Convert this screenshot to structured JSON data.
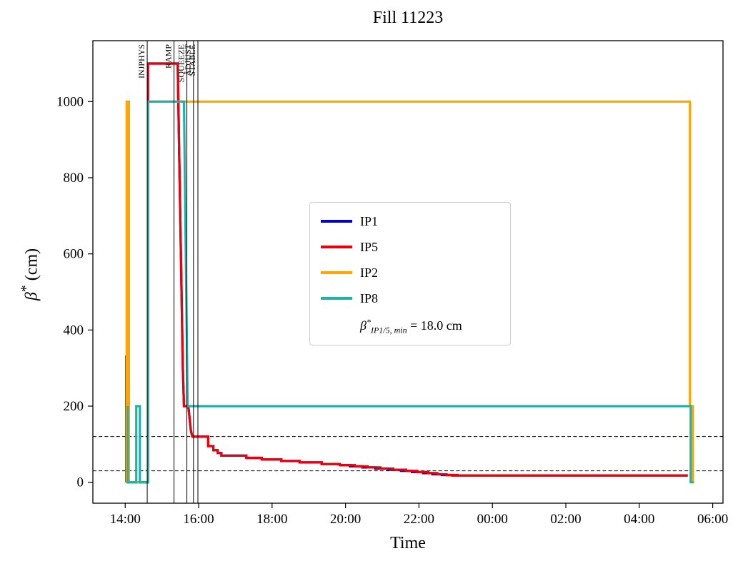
{
  "chart_data": {
    "type": "line",
    "title": "Fill 11223",
    "xlabel": "Time",
    "ylabel": "β* (cm)",
    "ylabel_parts": {
      "base": "β",
      "sup": "*",
      "unit": " (cm)"
    },
    "x_encoding": "hours; 24+ means next day",
    "xlim": [
      13.12,
      30.28
    ],
    "ylim": [
      -55,
      1160
    ],
    "grid": false,
    "legend_position": "center",
    "xticks": [
      {
        "v": 14,
        "label": "14:00"
      },
      {
        "v": 16,
        "label": "16:00"
      },
      {
        "v": 18,
        "label": "18:00"
      },
      {
        "v": 20,
        "label": "20:00"
      },
      {
        "v": 22,
        "label": "22:00"
      },
      {
        "v": 24,
        "label": "00:00"
      },
      {
        "v": 26,
        "label": "02:00"
      },
      {
        "v": 28,
        "label": "04:00"
      },
      {
        "v": 30,
        "label": "06:00"
      }
    ],
    "yticks": [
      {
        "v": 0,
        "label": "0"
      },
      {
        "v": 200,
        "label": "200"
      },
      {
        "v": 400,
        "label": "400"
      },
      {
        "v": 600,
        "label": "600"
      },
      {
        "v": 800,
        "label": "800"
      },
      {
        "v": 1000,
        "label": "1000"
      }
    ],
    "hlines": [
      {
        "y": 120,
        "style": "dashed",
        "color": "#000000"
      },
      {
        "y": 30,
        "style": "dashed",
        "color": "#000000"
      }
    ],
    "events": [
      {
        "t": 14.6,
        "label": "INJPHYS"
      },
      {
        "t": 15.33,
        "label": "RAMP"
      },
      {
        "t": 15.68,
        "label": "SQUEEZE"
      },
      {
        "t": 15.86,
        "label": "ADJUST"
      },
      {
        "t": 15.98,
        "label": "STABLE"
      }
    ],
    "series": [
      {
        "name": "IP1",
        "color": "#0000cd",
        "points": [
          [
            14.03,
            0
          ],
          [
            14.03,
            330
          ],
          [
            14.07,
            330
          ],
          [
            14.07,
            0
          ],
          [
            14.62,
            0
          ],
          [
            14.62,
            1100
          ],
          [
            15.43,
            1100
          ],
          [
            15.57,
            300
          ],
          [
            15.6,
            200
          ],
          [
            15.72,
            200
          ],
          [
            15.79,
            135
          ],
          [
            15.83,
            120
          ],
          [
            16.26,
            120
          ],
          [
            16.26,
            95
          ],
          [
            16.4,
            95
          ],
          [
            16.4,
            84
          ],
          [
            16.52,
            84
          ],
          [
            16.52,
            77
          ],
          [
            16.62,
            77
          ],
          [
            16.62,
            70
          ],
          [
            17.3,
            70
          ],
          [
            17.3,
            64
          ],
          [
            17.72,
            64
          ],
          [
            17.72,
            60
          ],
          [
            18.25,
            60
          ],
          [
            18.25,
            56
          ],
          [
            18.75,
            56
          ],
          [
            18.75,
            52
          ],
          [
            19.35,
            52
          ],
          [
            19.35,
            48
          ],
          [
            19.85,
            48
          ],
          [
            19.85,
            45
          ],
          [
            20.12,
            45
          ],
          [
            20.12,
            42
          ],
          [
            20.46,
            42
          ],
          [
            20.46,
            39
          ],
          [
            20.81,
            39
          ],
          [
            20.81,
            36
          ],
          [
            21.16,
            36
          ],
          [
            21.16,
            33
          ],
          [
            21.51,
            33
          ],
          [
            21.51,
            30
          ],
          [
            21.81,
            30
          ],
          [
            21.81,
            27
          ],
          [
            22.11,
            27
          ],
          [
            22.11,
            24
          ],
          [
            22.37,
            24
          ],
          [
            22.37,
            21
          ],
          [
            22.62,
            21
          ],
          [
            22.62,
            19
          ],
          [
            22.91,
            19
          ],
          [
            22.91,
            18
          ],
          [
            29.32,
            18
          ]
        ]
      },
      {
        "name": "IP5",
        "color": "#e8000b",
        "points": [
          [
            14.03,
            0
          ],
          [
            14.03,
            330
          ],
          [
            14.07,
            330
          ],
          [
            14.07,
            0
          ],
          [
            14.62,
            0
          ],
          [
            14.62,
            1100
          ],
          [
            15.43,
            1100
          ],
          [
            15.57,
            300
          ],
          [
            15.6,
            200
          ],
          [
            15.72,
            200
          ],
          [
            15.79,
            135
          ],
          [
            15.83,
            120
          ],
          [
            16.26,
            120
          ],
          [
            16.26,
            95
          ],
          [
            16.4,
            95
          ],
          [
            16.4,
            84
          ],
          [
            16.52,
            84
          ],
          [
            16.52,
            77
          ],
          [
            16.62,
            77
          ],
          [
            16.62,
            70
          ],
          [
            17.3,
            70
          ],
          [
            17.3,
            64
          ],
          [
            17.72,
            64
          ],
          [
            17.72,
            60
          ],
          [
            18.25,
            60
          ],
          [
            18.25,
            56
          ],
          [
            18.75,
            56
          ],
          [
            18.75,
            52
          ],
          [
            19.35,
            52
          ],
          [
            19.35,
            48
          ],
          [
            19.85,
            48
          ],
          [
            19.85,
            45
          ],
          [
            20.25,
            45
          ],
          [
            20.25,
            42
          ],
          [
            20.6,
            42
          ],
          [
            20.6,
            39
          ],
          [
            20.95,
            39
          ],
          [
            20.95,
            36
          ],
          [
            21.3,
            36
          ],
          [
            21.3,
            33
          ],
          [
            21.65,
            33
          ],
          [
            21.65,
            30
          ],
          [
            21.95,
            30
          ],
          [
            21.95,
            27
          ],
          [
            22.25,
            27
          ],
          [
            22.25,
            24
          ],
          [
            22.5,
            24
          ],
          [
            22.5,
            21
          ],
          [
            22.75,
            21
          ],
          [
            22.75,
            19
          ],
          [
            23.05,
            19
          ],
          [
            23.05,
            18
          ],
          [
            29.32,
            18
          ]
        ]
      },
      {
        "name": "IP2",
        "color": "#ffa500",
        "points": [
          [
            14.04,
            0
          ],
          [
            14.04,
            1000
          ],
          [
            14.1,
            1000
          ],
          [
            14.1,
            0
          ],
          [
            14.62,
            0
          ],
          [
            14.62,
            1000
          ],
          [
            29.38,
            1000
          ],
          [
            29.38,
            200
          ],
          [
            29.46,
            200
          ],
          [
            29.46,
            0
          ],
          [
            29.5,
            0
          ]
        ]
      },
      {
        "name": "IP8",
        "color": "#20b2aa",
        "points": [
          [
            14.07,
            200
          ],
          [
            14.07,
            0
          ],
          [
            14.3,
            0
          ],
          [
            14.3,
            200
          ],
          [
            14.4,
            200
          ],
          [
            14.4,
            0
          ],
          [
            14.62,
            0
          ],
          [
            14.62,
            1000
          ],
          [
            15.6,
            1000
          ],
          [
            15.7,
            200
          ],
          [
            29.4,
            200
          ],
          [
            29.4,
            0
          ],
          [
            29.47,
            0
          ]
        ]
      }
    ],
    "annotation": {
      "base": "β",
      "sup": "*",
      "sub": "IP1/5, min",
      "rest": " = 18.0 cm"
    }
  }
}
